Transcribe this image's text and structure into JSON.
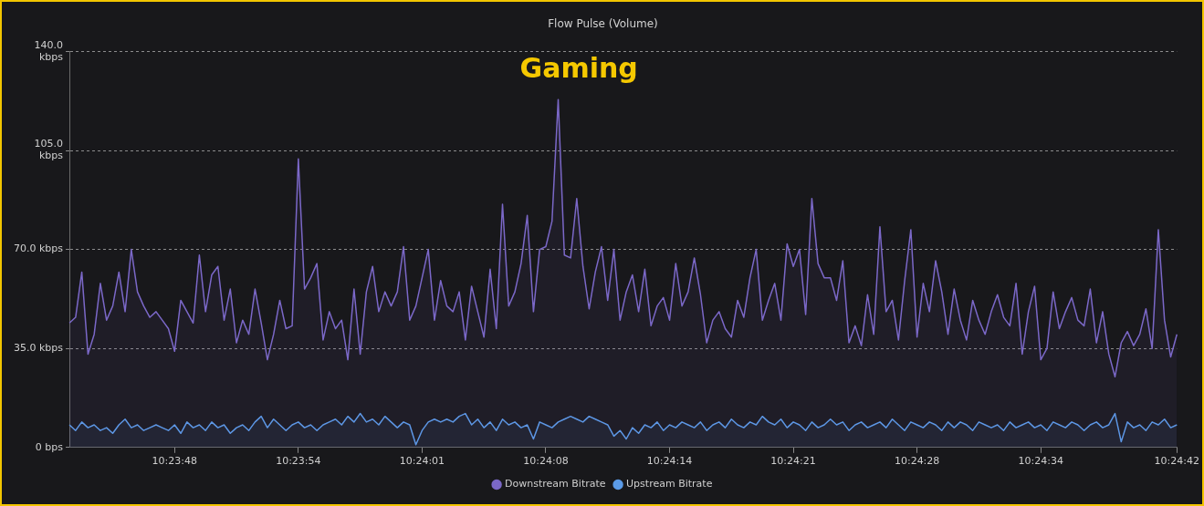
{
  "chart_data": {
    "type": "area",
    "title": "Flow Pulse (Volume)",
    "annotations": [
      "Gaming"
    ],
    "categories": [
      null,
      null,
      null,
      null,
      null,
      null,
      null,
      null,
      null,
      null,
      null,
      null,
      null,
      null,
      null,
      null,
      null,
      "10:23:48",
      null,
      null,
      null,
      null,
      null,
      null,
      null,
      null,
      null,
      null,
      null,
      null,
      null,
      null,
      null,
      null,
      null,
      null,
      null,
      "10:23:54",
      null,
      null,
      null,
      null,
      null,
      null,
      null,
      null,
      null,
      null,
      null,
      null,
      null,
      null,
      null,
      null,
      null,
      null,
      null,
      "10:24:01",
      null,
      null,
      null,
      null,
      null,
      null,
      null,
      null,
      null,
      null,
      null,
      null,
      null,
      null,
      null,
      null,
      null,
      null,
      null,
      "10:24:08",
      null,
      null,
      null,
      null,
      null,
      null,
      null,
      null,
      null,
      null,
      null,
      null,
      null,
      null,
      null,
      null,
      null,
      null,
      null,
      "10:24:14",
      null,
      null,
      null,
      null,
      null,
      null,
      null,
      null,
      null,
      null,
      null,
      null,
      null,
      null,
      null,
      null,
      null,
      null,
      null,
      "10:24:21",
      null,
      null,
      null,
      null,
      null,
      null,
      null,
      null,
      null,
      null,
      null,
      null,
      null,
      null,
      null,
      null,
      null,
      null,
      null,
      "10:24:28",
      null,
      null,
      null,
      null,
      null,
      null,
      null,
      null,
      null,
      null,
      null,
      null,
      null,
      null,
      null,
      null,
      null,
      null,
      null,
      "10:24:34",
      null,
      null,
      null,
      null,
      null,
      null,
      null,
      null,
      null,
      null,
      null,
      null,
      null,
      null,
      null,
      null,
      null,
      null,
      null,
      null,
      null,
      "10:24:42"
    ],
    "series": [
      {
        "name": "Downstream Bitrate",
        "color": "#7b68c8",
        "values": [
          44,
          46,
          62,
          33,
          40,
          58,
          45,
          50,
          62,
          48,
          70,
          55,
          50,
          46,
          48,
          45,
          42,
          34,
          52,
          48,
          44,
          68,
          48,
          61,
          64,
          45,
          56,
          37,
          45,
          40,
          56,
          44,
          31,
          40,
          52,
          42,
          43,
          102,
          56,
          60,
          65,
          38,
          48,
          42,
          45,
          31,
          56,
          33,
          55,
          64,
          48,
          55,
          50,
          55,
          71,
          45,
          50,
          60,
          70,
          45,
          59,
          50,
          48,
          55,
          38,
          57,
          48,
          39,
          63,
          42,
          86,
          50,
          55,
          65,
          82,
          48,
          70,
          71,
          80,
          123,
          68,
          67,
          88,
          64,
          49,
          62,
          71,
          52,
          70,
          45,
          55,
          61,
          48,
          63,
          43,
          50,
          53,
          45,
          65,
          50,
          55,
          67,
          54,
          37,
          45,
          48,
          42,
          39,
          52,
          46,
          60,
          70,
          45,
          52,
          58,
          45,
          72,
          64,
          70,
          47,
          88,
          65,
          60,
          60,
          52,
          66,
          37,
          43,
          36,
          54,
          40,
          78,
          48,
          52,
          38,
          59,
          77,
          39,
          58,
          48,
          66,
          55,
          40,
          56,
          45,
          38,
          52,
          45,
          40,
          48,
          54,
          46,
          43,
          58,
          33,
          48,
          57,
          31,
          35,
          55,
          42,
          48,
          53,
          45,
          43,
          56,
          37,
          48,
          33,
          25,
          37,
          41,
          36,
          40,
          49,
          35,
          77,
          45,
          32,
          40
        ]
      },
      {
        "name": "Upstream Bitrate",
        "color": "#5b9be8",
        "values": [
          8,
          6,
          9,
          7,
          8,
          6,
          7,
          5,
          8,
          10,
          7,
          8,
          6,
          7,
          8,
          7,
          6,
          8,
          5,
          9,
          7,
          8,
          6,
          9,
          7,
          8,
          5,
          7,
          8,
          6,
          9,
          11,
          7,
          10,
          8,
          6,
          8,
          9,
          7,
          8,
          6,
          8,
          9,
          10,
          8,
          11,
          9,
          12,
          9,
          10,
          8,
          11,
          9,
          7,
          9,
          8,
          1,
          6,
          9,
          10,
          9,
          10,
          9,
          11,
          12,
          8,
          10,
          7,
          9,
          6,
          10,
          8,
          9,
          7,
          8,
          3,
          9,
          8,
          7,
          9,
          10,
          11,
          10,
          9,
          11,
          10,
          9,
          8,
          4,
          6,
          3,
          7,
          5,
          8,
          7,
          9,
          6,
          8,
          7,
          9,
          8,
          7,
          9,
          6,
          8,
          9,
          7,
          10,
          8,
          7,
          9,
          8,
          11,
          9,
          8,
          10,
          7,
          9,
          8,
          6,
          9,
          7,
          8,
          10,
          8,
          9,
          6,
          8,
          9,
          7,
          8,
          9,
          7,
          10,
          8,
          6,
          9,
          8,
          7,
          9,
          8,
          6,
          9,
          7,
          9,
          8,
          6,
          9,
          8,
          7,
          8,
          6,
          9,
          7,
          8,
          9,
          7,
          8,
          6,
          9,
          8,
          7,
          9,
          8,
          6,
          8,
          9,
          7,
          8,
          12,
          2,
          9,
          7,
          8,
          6,
          9,
          8,
          10,
          7,
          8
        ]
      }
    ],
    "ylim": [
      0,
      140
    ],
    "yticks": [
      {
        "value": 0,
        "label": "0 bps"
      },
      {
        "value": 35,
        "label": "35.0 kbps"
      },
      {
        "value": 70,
        "label": "70.0 kbps"
      },
      {
        "value": 105,
        "label": "105.0 kbps"
      },
      {
        "value": 140,
        "label": "140.0 kbps"
      }
    ],
    "grid": "y",
    "legend": "bottom",
    "marker": "none",
    "line_style": "solid"
  }
}
